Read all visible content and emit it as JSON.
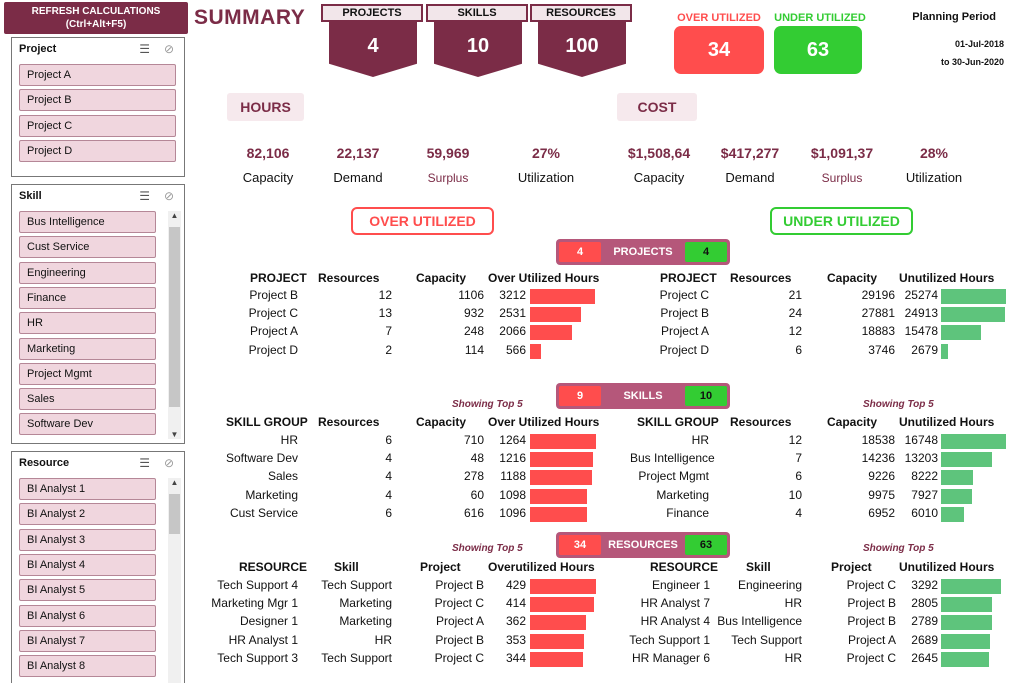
{
  "refresh": {
    "line1": "REFRESH CALCULATIONS",
    "line2": "(Ctrl+Alt+F5)"
  },
  "slicers": {
    "project": {
      "title": "Project",
      "items": [
        "Project A",
        "Project B",
        "Project C",
        "Project D"
      ]
    },
    "skill": {
      "title": "Skill",
      "items": [
        "Bus Intelligence",
        "Cust Service",
        "Engineering",
        "Finance",
        "HR",
        "Marketing",
        "Project Mgmt",
        "Sales",
        "Software Dev"
      ]
    },
    "resource": {
      "title": "Resource",
      "items": [
        "BI Analyst 1",
        "BI Analyst 2",
        "BI Analyst 3",
        "BI Analyst 4",
        "BI Analyst 5",
        "BI Analyst 6",
        "BI Analyst 7",
        "BI Analyst 8"
      ]
    }
  },
  "title": "SUMMARY",
  "kpis": [
    {
      "label": "PROJECTS",
      "value": "4"
    },
    {
      "label": "SKILLS",
      "value": "10"
    },
    {
      "label": "RESOURCES",
      "value": "100"
    }
  ],
  "util": {
    "over_label": "OVER UTILIZED",
    "over_value": "34",
    "under_label": "UNDER UTILIZED",
    "under_value": "63"
  },
  "planning": {
    "title": "Planning Period",
    "from": "01-Jul-2018",
    "to": "to 30-Jun-2020"
  },
  "hours": {
    "label": "HOURS",
    "metrics": [
      {
        "value": "82,106",
        "label": "Capacity"
      },
      {
        "value": "22,137",
        "label": "Demand"
      },
      {
        "value": "59,969",
        "label": "Surplus"
      },
      {
        "value": "27%",
        "label": "Utilization"
      }
    ]
  },
  "cost": {
    "label": "COST",
    "metrics": [
      {
        "value": "$1,508,64",
        "label": "Capacity"
      },
      {
        "value": "$417,277",
        "label": "Demand"
      },
      {
        "value": "$1,091,37",
        "label": "Surplus"
      },
      {
        "value": "28%",
        "label": "Utilization"
      }
    ]
  },
  "sections": {
    "over": "OVER UTILIZED",
    "under": "UNDER UTILIZED"
  },
  "colors": {
    "maroon": "#7b2c47",
    "red": "#ff4d4d",
    "green": "#33cc33",
    "bar_green": "#5ec47c",
    "band": "#b5577a"
  },
  "show_top": "Showing Top 5",
  "bands": {
    "projects": {
      "label": "PROJECTS",
      "over": "4",
      "under": "4"
    },
    "skills": {
      "label": "SKILLS",
      "over": "9",
      "under": "10"
    },
    "resources": {
      "label": "RESOURCES",
      "over": "34",
      "under": "63"
    }
  },
  "projects": {
    "over": {
      "headers": [
        "PROJECT",
        "Resources",
        "Capacity",
        "Over Utilized Hours"
      ],
      "rows": [
        [
          "Project B",
          "12",
          "1106",
          "3212"
        ],
        [
          "Project C",
          "13",
          "932",
          "2531"
        ],
        [
          "Project A",
          "7",
          "248",
          "2066"
        ],
        [
          "Project D",
          "2",
          "114",
          "566"
        ]
      ]
    },
    "under": {
      "headers": [
        "PROJECT",
        "Resources",
        "Capacity",
        "Unutilized Hours"
      ],
      "rows": [
        [
          "Project C",
          "21",
          "29196",
          "25274"
        ],
        [
          "Project B",
          "24",
          "27881",
          "24913"
        ],
        [
          "Project A",
          "12",
          "18883",
          "15478"
        ],
        [
          "Project D",
          "6",
          "3746",
          "2679"
        ]
      ]
    }
  },
  "skills": {
    "over": {
      "headers": [
        "SKILL GROUP",
        "Resources",
        "Capacity",
        "Over Utilized Hours"
      ],
      "rows": [
        [
          "HR",
          "6",
          "710",
          "1264"
        ],
        [
          "Software Dev",
          "4",
          "48",
          "1216"
        ],
        [
          "Sales",
          "4",
          "278",
          "1188"
        ],
        [
          "Marketing",
          "4",
          "60",
          "1098"
        ],
        [
          "Cust Service",
          "6",
          "616",
          "1096"
        ]
      ]
    },
    "under": {
      "headers": [
        "SKILL GROUP",
        "Resources",
        "Capacity",
        "Unutilized Hours"
      ],
      "rows": [
        [
          "HR",
          "12",
          "18538",
          "16748"
        ],
        [
          "Bus Intelligence",
          "7",
          "14236",
          "13203"
        ],
        [
          "Project Mgmt",
          "6",
          "9226",
          "8222"
        ],
        [
          "Marketing",
          "10",
          "9975",
          "7927"
        ],
        [
          "Finance",
          "4",
          "6952",
          "6010"
        ]
      ]
    }
  },
  "resources": {
    "over": {
      "headers": [
        "RESOURCE",
        "Skill",
        "Project",
        "Overutilized Hours"
      ],
      "rows": [
        [
          "Tech Support 4",
          "Tech Support",
          "Project B",
          "429"
        ],
        [
          "Marketing Mgr 1",
          "Marketing",
          "Project C",
          "414"
        ],
        [
          "Designer 1",
          "Marketing",
          "Project A",
          "362"
        ],
        [
          "HR Analyst 1",
          "HR",
          "Project B",
          "353"
        ],
        [
          "Tech Support 3",
          "Tech Support",
          "Project C",
          "344"
        ]
      ]
    },
    "under": {
      "headers": [
        "RESOURCE",
        "Skill",
        "Project",
        "Unutilized Hours"
      ],
      "rows": [
        [
          "Engineer 1",
          "Engineering",
          "Project C",
          "3292"
        ],
        [
          "HR Analyst 7",
          "HR",
          "Project B",
          "2805"
        ],
        [
          "HR Analyst 4",
          "Bus Intelligence",
          "Project B",
          "2789"
        ],
        [
          "Tech Support 1",
          "Tech Support",
          "Project A",
          "2689"
        ],
        [
          "HR Manager 6",
          "HR",
          "Project C",
          "2645"
        ]
      ]
    }
  }
}
